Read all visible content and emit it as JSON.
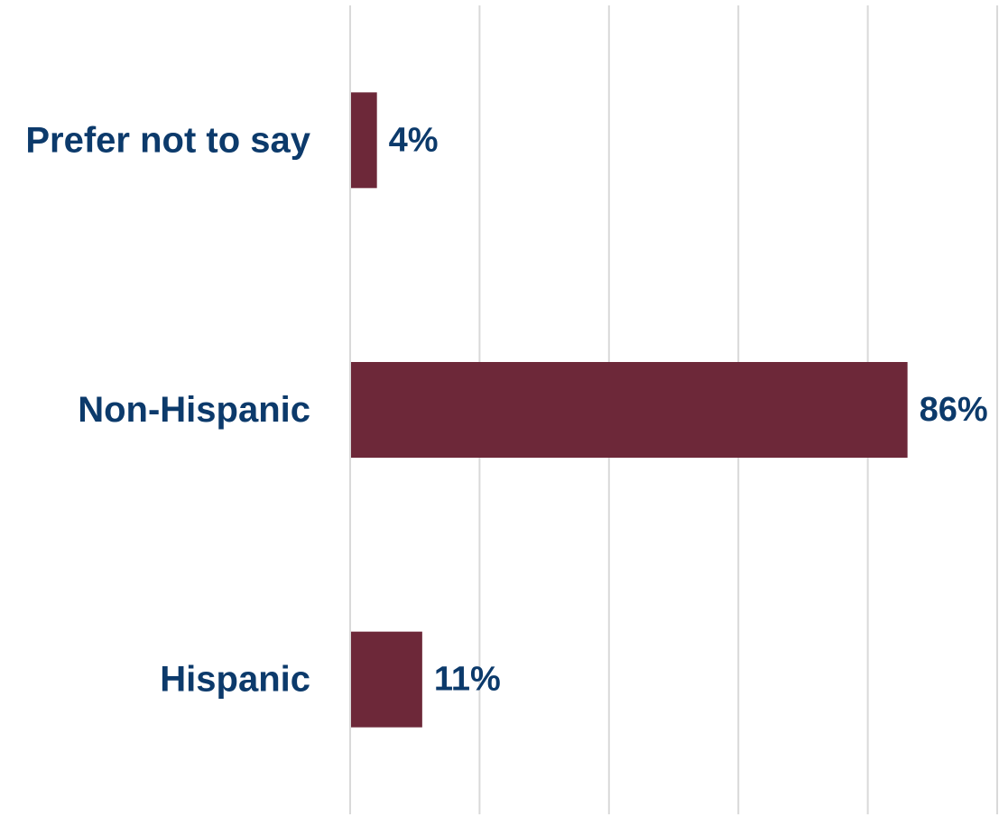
{
  "chart_data": {
    "type": "bar",
    "orientation": "horizontal",
    "categories": [
      "Prefer not to say",
      "Non-Hispanic",
      "Hispanic"
    ],
    "values": [
      4,
      86,
      11
    ],
    "value_labels": [
      "4%",
      "86%",
      "11%"
    ],
    "xlim": [
      0,
      100
    ],
    "grid": true,
    "gridlines": [
      0,
      20,
      40,
      60,
      80,
      100
    ],
    "tick_labels_visible": false,
    "legend": "none"
  },
  "colors": {
    "bar": "#6d2839",
    "label_text": "#0c3a6b",
    "gridline": "#d9d9d9"
  }
}
